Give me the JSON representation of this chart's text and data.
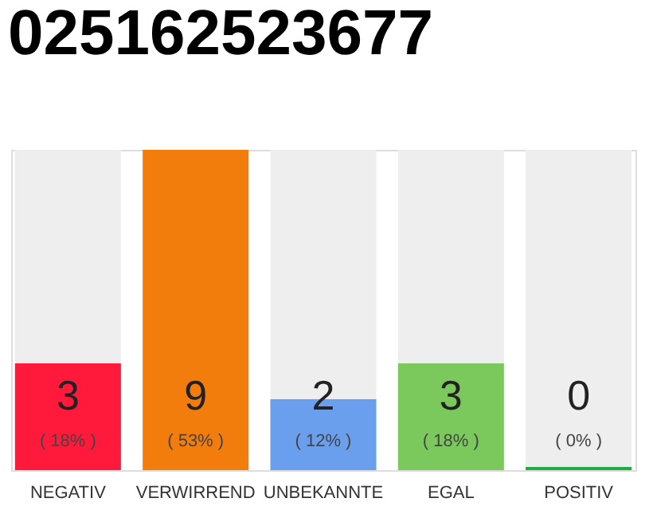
{
  "chart_data": {
    "type": "bar",
    "title": "025162523677",
    "stacked": true,
    "categories": [
      "NEGATIV",
      "VERWIRREND",
      "UNBEKANNTE",
      "EGAL",
      "POSITIV"
    ],
    "series": [
      {
        "colors": [
          "#ff1a3c",
          "#f27d0c",
          "#6a9fee",
          "#7bc95c",
          "#22aa44"
        ],
        "values": [
          3,
          9,
          2,
          3,
          0
        ],
        "value_labels": [
          "3",
          "9",
          "2",
          "3",
          "0"
        ]
      },
      {
        "color": "#eeeeee",
        "values": [
          6,
          0,
          7,
          6,
          9
        ]
      }
    ],
    "ylim": [
      0,
      9
    ],
    "tick_labels": "x",
    "annotations": [
      "( 18% )",
      "( 53% )",
      "( 12% )",
      "( 18% )",
      "( 0% )"
    ]
  }
}
